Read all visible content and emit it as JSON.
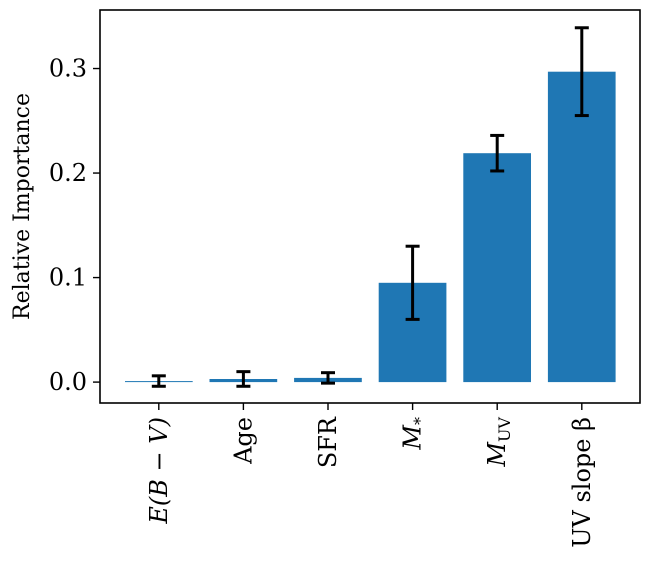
{
  "chart_data": {
    "type": "bar",
    "title": "",
    "xlabel": "",
    "ylabel": "Relative Importance",
    "categories": [
      {
        "main": "E(B − V)",
        "sub": "",
        "italic": true
      },
      {
        "main": "Age",
        "sub": "",
        "italic": false
      },
      {
        "main": "SFR",
        "sub": "",
        "italic": false
      },
      {
        "main": "M",
        "sub": "*",
        "italic": true
      },
      {
        "main": "M",
        "sub": "UV",
        "italic": true
      },
      {
        "main": "UV slope β",
        "sub": "",
        "italic": false
      }
    ],
    "values": [
      0.001,
      0.003,
      0.004,
      0.095,
      0.219,
      0.297
    ],
    "error_low": [
      0.005,
      0.007,
      0.005,
      0.035,
      0.017,
      0.042
    ],
    "error_high": [
      0.005,
      0.007,
      0.005,
      0.035,
      0.017,
      0.042
    ],
    "ylim": [
      -0.02,
      0.356
    ],
    "yticks": [
      0.0,
      0.1,
      0.2,
      0.3
    ],
    "ytick_labels": [
      "0.0",
      "0.1",
      "0.2",
      "0.3"
    ],
    "grid": false,
    "bar_color": "#1f77b4",
    "error_color": "#000000"
  }
}
